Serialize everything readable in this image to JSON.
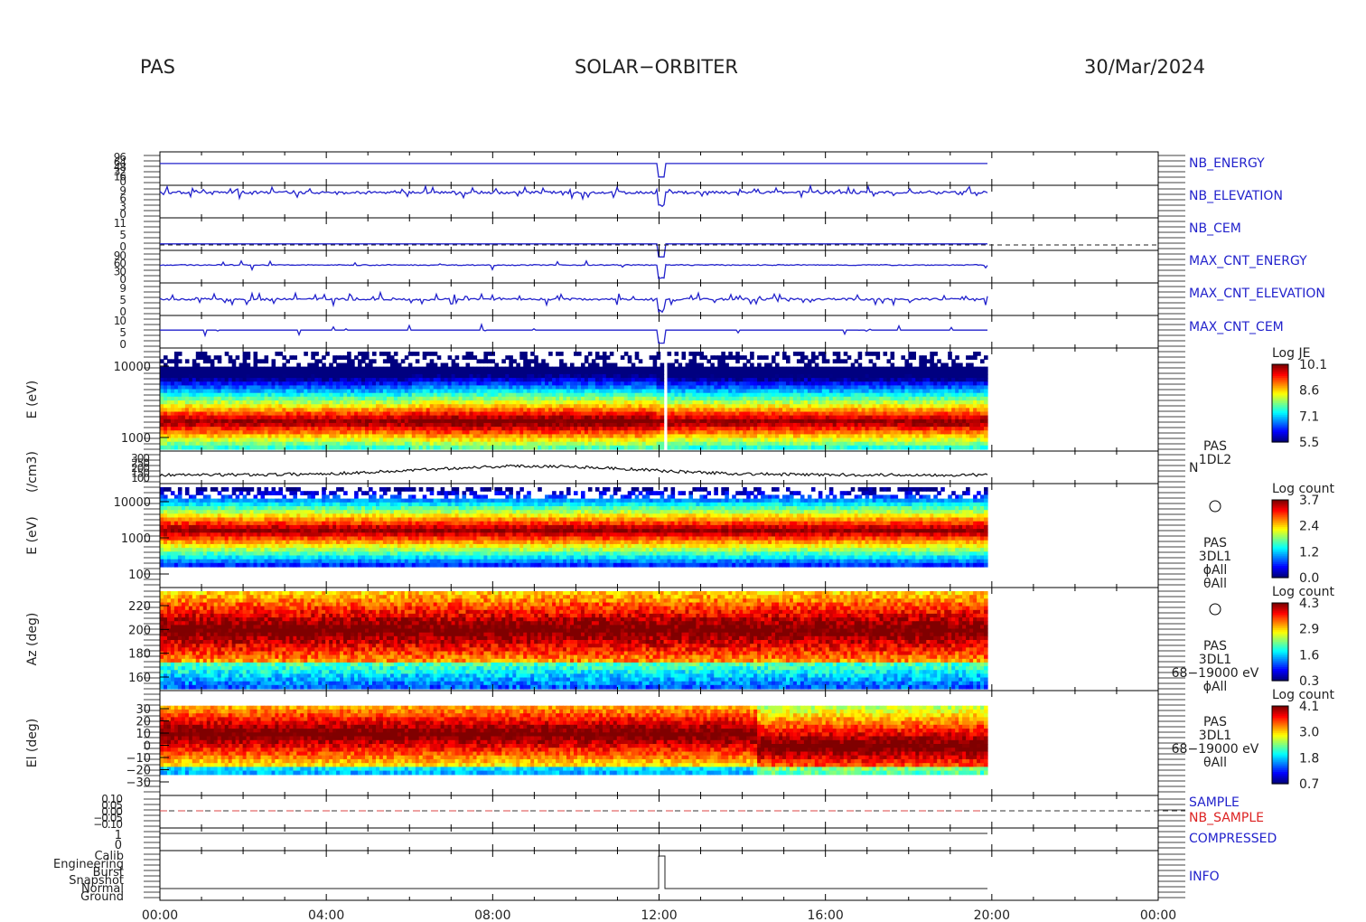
{
  "header": {
    "instrument": "PAS",
    "mission": "SOLAR−ORBITER",
    "date": "30/Mar/2024"
  },
  "chart_data": {
    "type": "multi-panel time series",
    "x_tick_labels": [
      "00:00",
      "04:00",
      "08:00",
      "12:00",
      "16:00",
      "20:00",
      "00:00"
    ],
    "data_end": "20:00",
    "panels": [
      {
        "name": "NB_ENERGY",
        "label_color": "#2222cc",
        "type": "line",
        "tick_labels": [
          "96",
          "64",
          "48",
          "32",
          "16",
          "0"
        ]
      },
      {
        "name": "NB_ELEVATION",
        "label_color": "#2222cc",
        "type": "line",
        "tick_labels": [
          "9",
          "6",
          "3",
          "0"
        ]
      },
      {
        "name": "NB_CEM",
        "label_color": "#2222cc",
        "type": "line",
        "tick_labels": [
          "11",
          "5",
          "0"
        ]
      },
      {
        "name": "MAX_CNT_ENERGY",
        "label_color": "#2222cc",
        "type": "line",
        "tick_labels": [
          "90",
          "60",
          "30",
          "0"
        ]
      },
      {
        "name": "MAX_CNT_ELEVATION",
        "label_color": "#2222cc",
        "type": "line",
        "tick_labels": [
          "9",
          "5",
          "0"
        ]
      },
      {
        "name": "MAX_CNT_CEM",
        "label_color": "#2222cc",
        "type": "line",
        "tick_labels": [
          "10",
          "5",
          "0"
        ]
      },
      {
        "name": "energy_spectrogram_1",
        "type": "heatmap",
        "ylabel": "E (eV)",
        "y_ticks": [
          "10000",
          "1000"
        ],
        "colorbar": {
          "title": "Log JE",
          "ticks": [
            "10.1",
            "8.6",
            "7.1",
            "5.5"
          ]
        }
      },
      {
        "name": "density",
        "type": "line",
        "ylabel": "(/cm3)",
        "y_ticks": [
          "300",
          "250",
          "200",
          "150",
          "100"
        ],
        "side_label": "N",
        "product": [
          "PAS",
          "1DL2"
        ]
      },
      {
        "name": "energy_spectrogram_2",
        "type": "heatmap",
        "ylabel": "E (eV)",
        "y_ticks": [
          "10000",
          "1000",
          "100"
        ],
        "colorbar": {
          "title": "Log count",
          "ticks": [
            "3.7",
            "2.4",
            "1.2",
            "0.0"
          ]
        },
        "side_text": [
          "PAS",
          "3DL1",
          "ϕAll",
          "θAll"
        ]
      },
      {
        "name": "azimuth_spectrogram",
        "type": "heatmap",
        "ylabel": "Az (deg)",
        "y_ticks": [
          "220",
          "200",
          "180",
          "160"
        ],
        "colorbar": {
          "title": "Log count",
          "ticks": [
            "4.3",
            "2.9",
            "1.6",
            "0.3"
          ]
        },
        "side_text": [
          "PAS",
          "3DL1",
          "68−19000 eV",
          "ϕAll"
        ]
      },
      {
        "name": "elevation_spectrogram",
        "type": "heatmap",
        "ylabel": "El (deg)",
        "y_ticks": [
          "30",
          "20",
          "10",
          "0",
          "−10",
          "−20",
          "−30"
        ],
        "colorbar": {
          "title": "Log count",
          "ticks": [
            "4.1",
            "3.0",
            "1.8",
            "0.7"
          ]
        },
        "side_text": [
          "PAS",
          "3DL1",
          "68−19000 eV",
          "θAll"
        ]
      },
      {
        "name": "SAMPLE",
        "label_color": "#2222cc",
        "second_name": "NB_SAMPLE",
        "second_color": "#dd2222",
        "type": "line",
        "tick_labels": [
          "0.10",
          "0.05",
          "0.00",
          "−0.05",
          "−0.10"
        ]
      },
      {
        "name": "COMPRESSED",
        "label_color": "#2222cc",
        "type": "line",
        "tick_labels": [
          "1",
          "0"
        ]
      },
      {
        "name": "INFO",
        "label_color": "#2222cc",
        "type": "line",
        "tick_labels": [
          "Calib",
          "Engineering",
          "Burst",
          "Snapshot",
          "Normal",
          "Ground"
        ]
      }
    ]
  }
}
